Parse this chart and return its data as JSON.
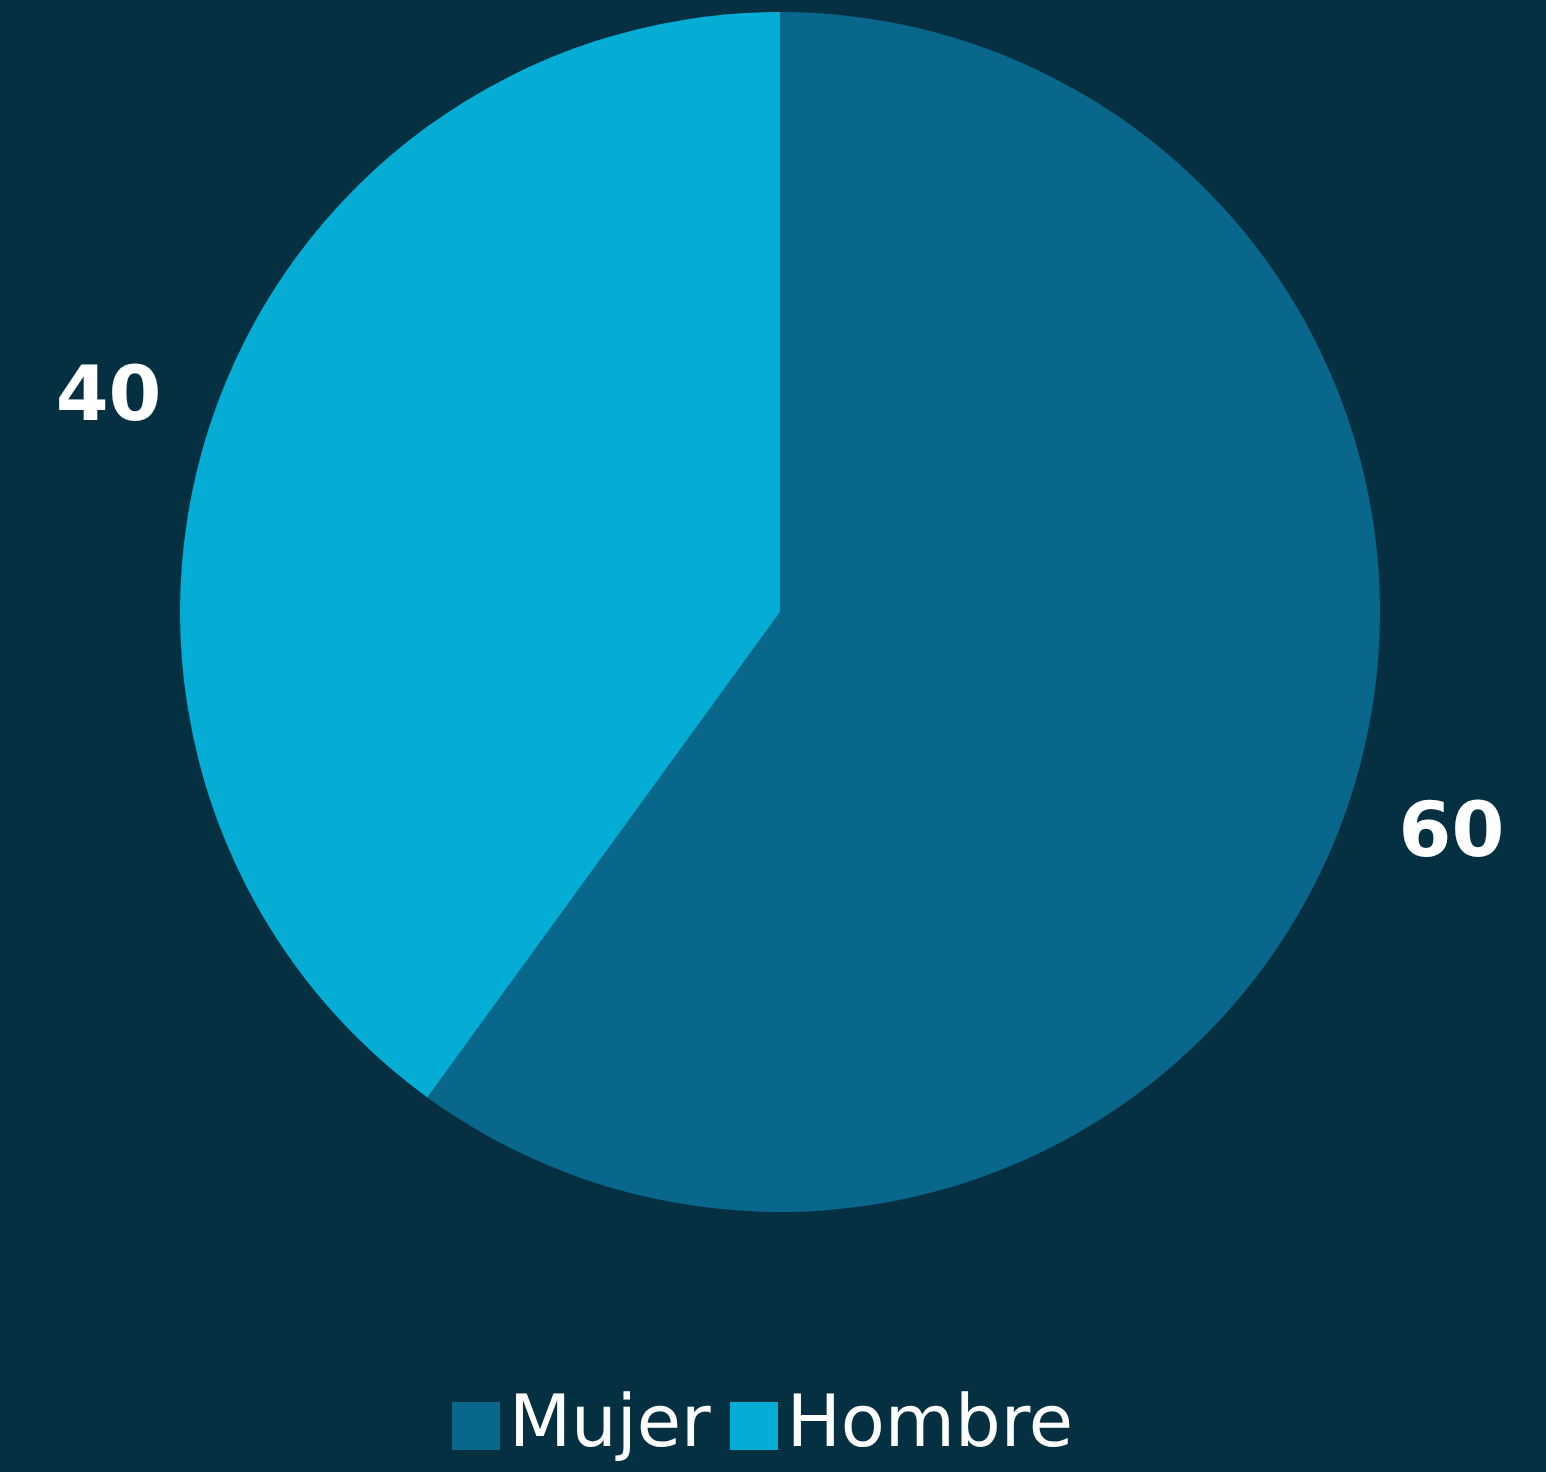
{
  "chart_data": {
    "type": "pie",
    "categories": [
      "Mujer",
      "Hombre"
    ],
    "values": [
      60,
      40
    ],
    "colors": [
      "#08678a",
      "#05acd4"
    ],
    "data_labels": true,
    "legend": "bottom"
  }
}
